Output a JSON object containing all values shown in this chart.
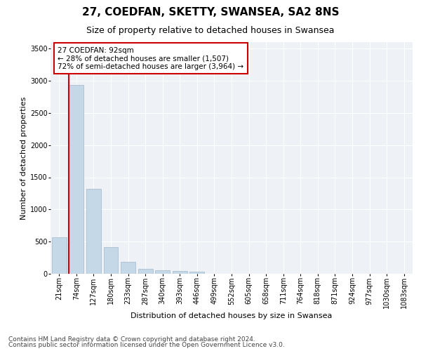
{
  "title1": "27, COEDFAN, SKETTY, SWANSEA, SA2 8NS",
  "title2": "Size of property relative to detached houses in Swansea",
  "xlabel": "Distribution of detached houses by size in Swansea",
  "ylabel": "Number of detached properties",
  "categories": [
    "21sqm",
    "74sqm",
    "127sqm",
    "180sqm",
    "233sqm",
    "287sqm",
    "340sqm",
    "393sqm",
    "446sqm",
    "499sqm",
    "552sqm",
    "605sqm",
    "658sqm",
    "711sqm",
    "764sqm",
    "818sqm",
    "871sqm",
    "924sqm",
    "977sqm",
    "1030sqm",
    "1083sqm"
  ],
  "values": [
    570,
    2940,
    1320,
    410,
    185,
    80,
    50,
    45,
    35,
    0,
    0,
    0,
    0,
    0,
    0,
    0,
    0,
    0,
    0,
    0,
    0
  ],
  "bar_color": "#c5d8e8",
  "bar_edgecolor": "#a0b8cc",
  "property_line_color": "#cc0000",
  "annotation_text": "27 COEDFAN: 92sqm\n← 28% of detached houses are smaller (1,507)\n72% of semi-detached houses are larger (3,964) →",
  "annotation_box_edgecolor": "#cc0000",
  "ylim": [
    0,
    3600
  ],
  "yticks": [
    0,
    500,
    1000,
    1500,
    2000,
    2500,
    3000,
    3500
  ],
  "footer1": "Contains HM Land Registry data © Crown copyright and database right 2024.",
  "footer2": "Contains public sector information licensed under the Open Government Licence v3.0.",
  "bg_color": "#eef2f7",
  "grid_color": "#ffffff",
  "title1_fontsize": 11,
  "title2_fontsize": 9,
  "axis_label_fontsize": 8,
  "tick_fontsize": 7,
  "annotation_fontsize": 7.5,
  "footer_fontsize": 6.5
}
